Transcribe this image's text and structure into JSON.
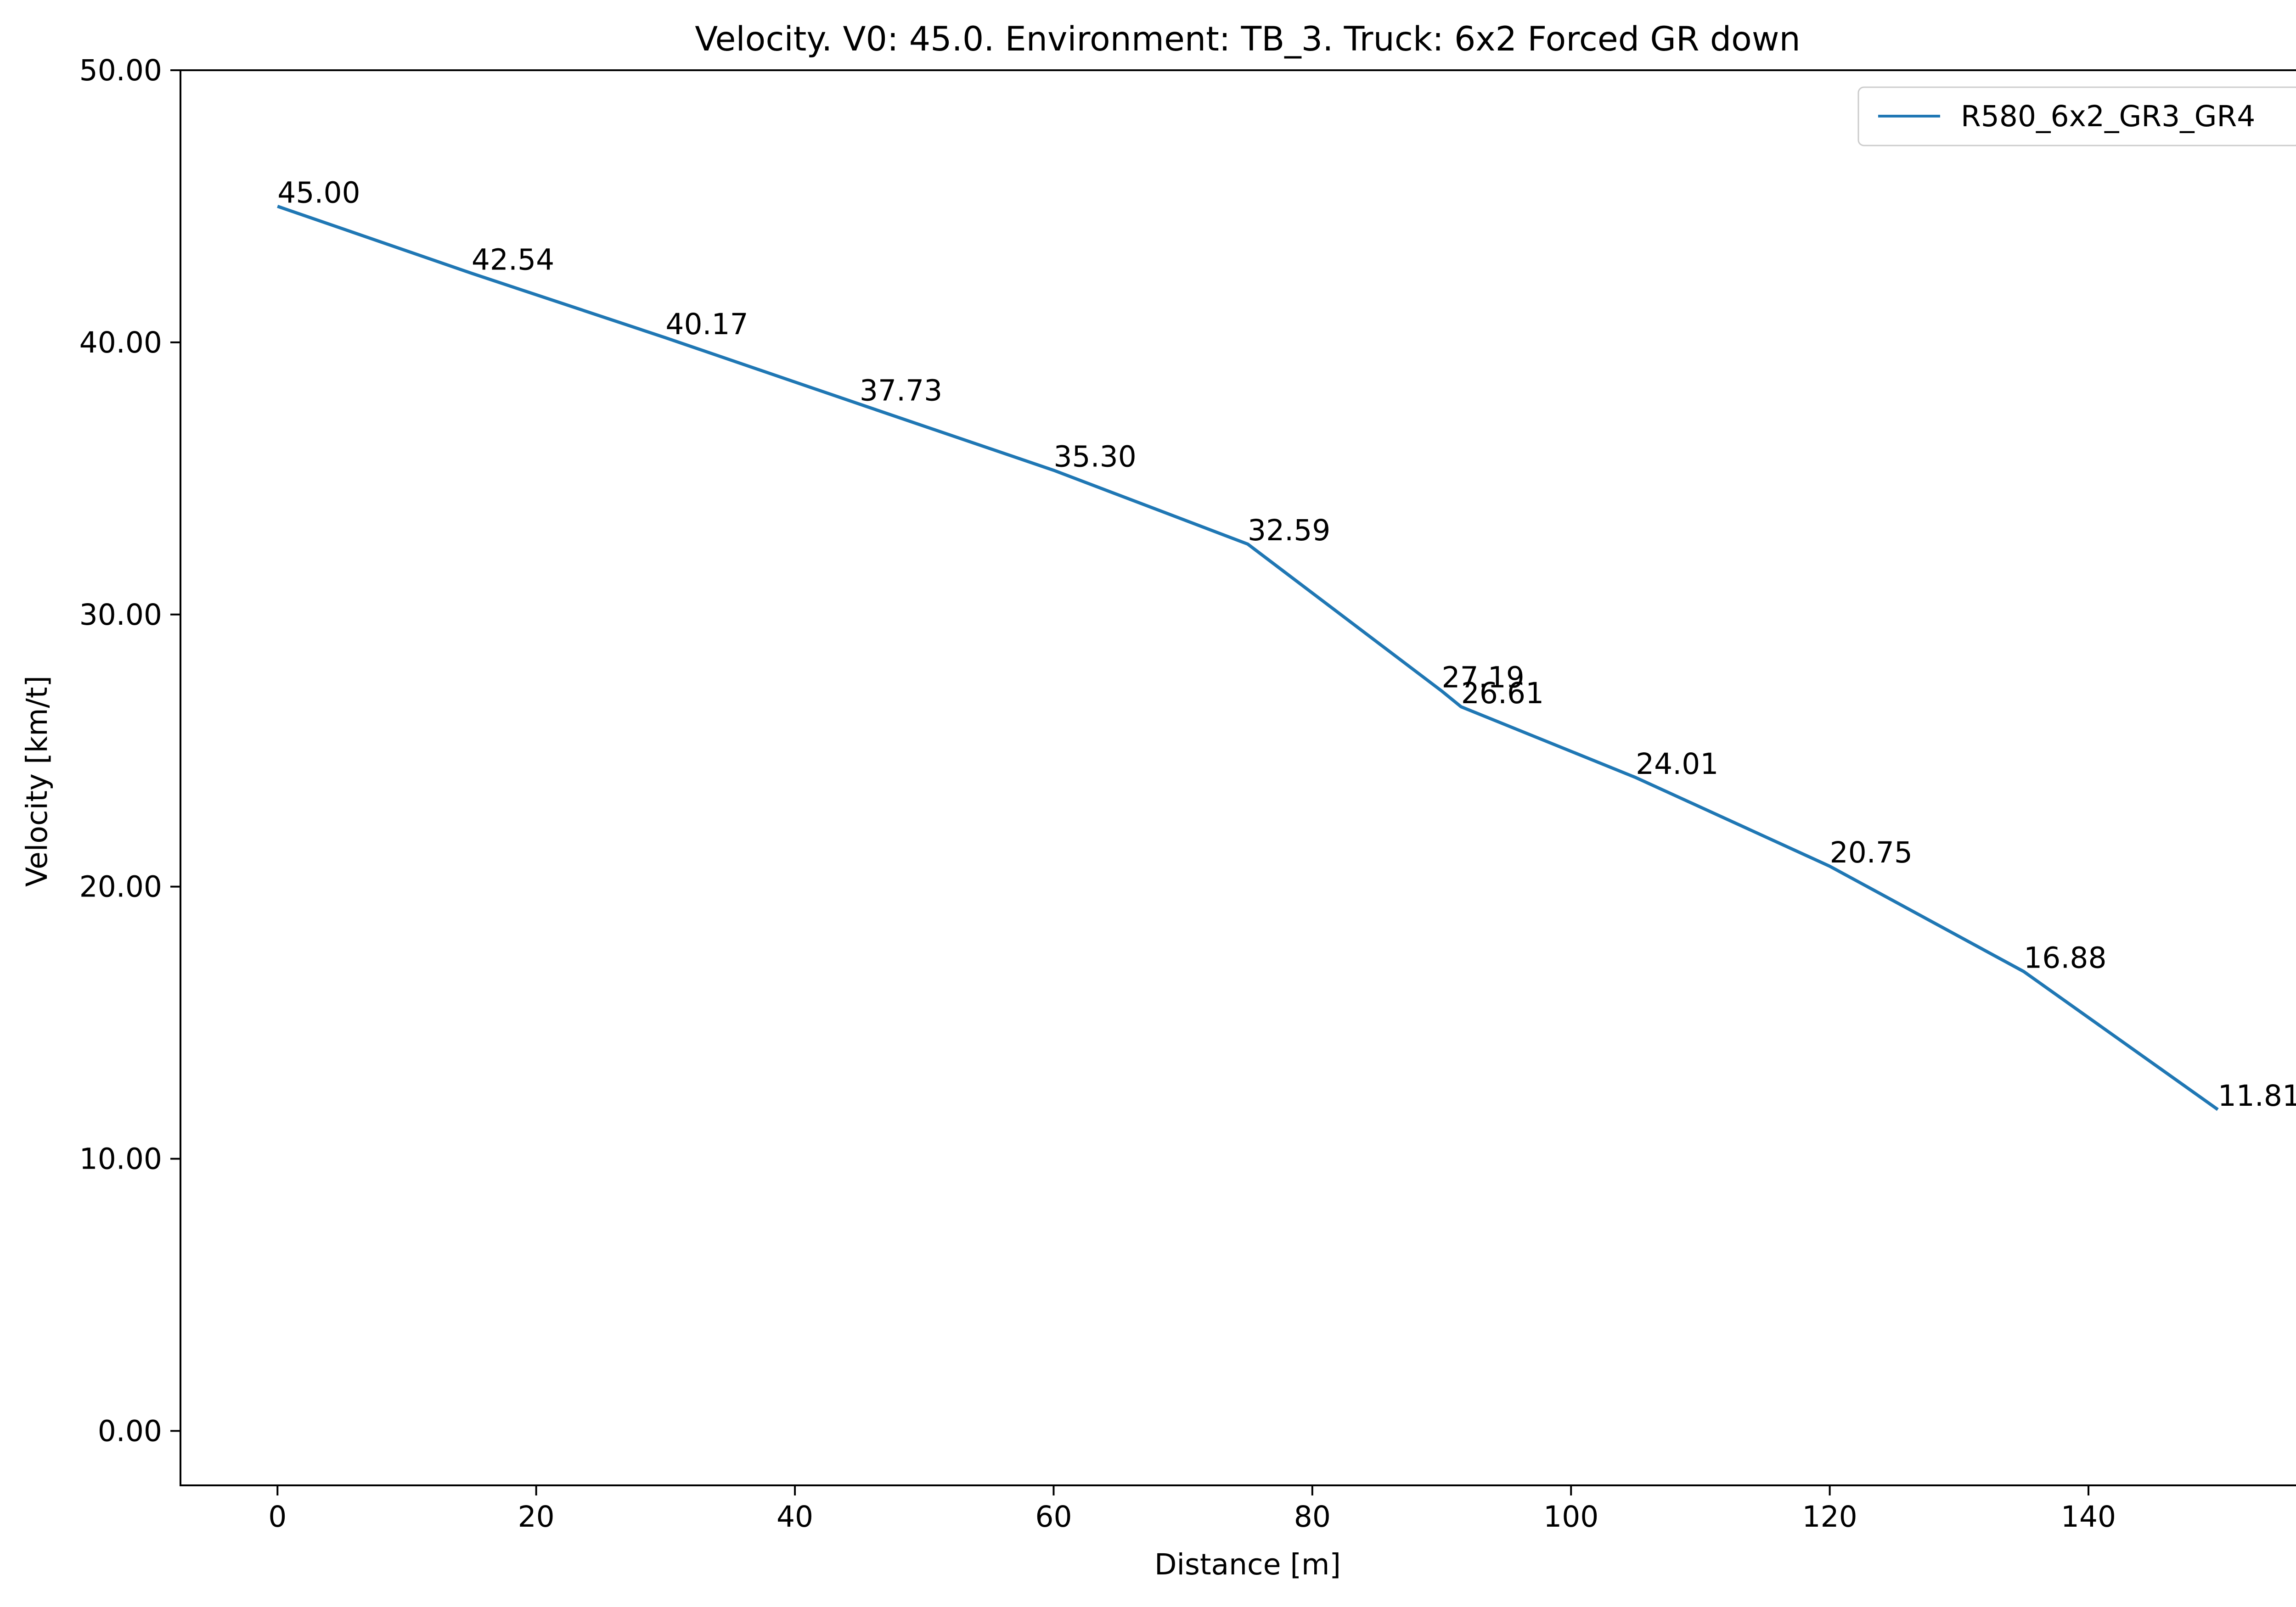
{
  "chart_data": {
    "type": "line",
    "title": "Velocity. V0: 45.0. Environment: TB_3. Truck: 6x2 Forced GR down",
    "xlabel": "Distance [m]",
    "ylabel": "Velocity [km/t]",
    "xlim": [
      -7.5,
      157.5
    ],
    "ylim": [
      -2.0,
      50.0
    ],
    "xticks": [
      0,
      20,
      40,
      60,
      80,
      100,
      120,
      140
    ],
    "xtick_labels": [
      "0",
      "20",
      "40",
      "60",
      "80",
      "100",
      "120",
      "140"
    ],
    "yticks": [
      0,
      10,
      20,
      30,
      40,
      50
    ],
    "ytick_labels": [
      "0.00",
      "10.00",
      "20.00",
      "30.00",
      "40.00",
      "50.00"
    ],
    "grid": false,
    "legend_position": "top-right",
    "series": [
      {
        "name": "R580_6x2_GR3_GR4",
        "color": "#1f77b4",
        "x": [
          0,
          15,
          30,
          45,
          60,
          75,
          90,
          91.5,
          105,
          120,
          135,
          150
        ],
        "y": [
          45.0,
          42.54,
          40.17,
          37.73,
          35.3,
          32.59,
          27.19,
          26.61,
          24.01,
          20.75,
          16.88,
          11.81
        ],
        "labels": [
          "45.00",
          "42.54",
          "40.17",
          "37.73",
          "35.30",
          "32.59",
          "27.19",
          "26.61",
          "24.01",
          "20.75",
          "16.88",
          "11.81"
        ]
      }
    ]
  }
}
